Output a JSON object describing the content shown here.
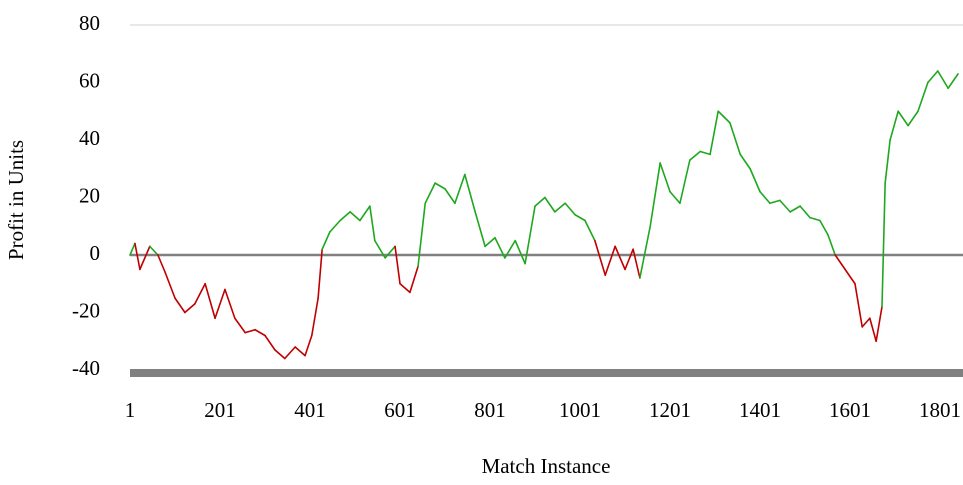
{
  "chart_data": {
    "type": "line",
    "x_label": "Match Instance",
    "y_label": "Profit in Units",
    "x": [
      1,
      12,
      23,
      45,
      63,
      79,
      101,
      123,
      145,
      168,
      190,
      212,
      234,
      257,
      279,
      301,
      323,
      345,
      368,
      390,
      405,
      419,
      428,
      445,
      468,
      490,
      512,
      534,
      545,
      568,
      590,
      601,
      623,
      641,
      657,
      679,
      701,
      723,
      745,
      768,
      790,
      812,
      834,
      857,
      879,
      901,
      923,
      945,
      968,
      990,
      1012,
      1034,
      1057,
      1079,
      1101,
      1119,
      1134,
      1157,
      1179,
      1201,
      1223,
      1245,
      1268,
      1290,
      1308,
      1334,
      1357,
      1379,
      1401,
      1423,
      1445,
      1468,
      1490,
      1512,
      1534,
      1552,
      1568,
      1590,
      1612,
      1628,
      1645,
      1659,
      1672,
      1679,
      1690,
      1708,
      1730,
      1752,
      1774,
      1796,
      1819,
      1841
    ],
    "values": [
      0,
      4,
      -5,
      3,
      0,
      -6,
      -15,
      -20,
      -17,
      -10,
      -22,
      -12,
      -22,
      -27,
      -26,
      -28,
      -33,
      -36,
      -32,
      -35,
      -28,
      -15,
      2,
      8,
      12,
      15,
      12,
      17,
      5,
      -1,
      3,
      -10,
      -13,
      -4,
      18,
      25,
      23,
      18,
      28,
      15,
      3,
      6,
      -1,
      5,
      -3,
      17,
      20,
      15,
      18,
      14,
      12,
      5,
      -7,
      3,
      -5,
      2,
      -8,
      10,
      32,
      22,
      18,
      33,
      36,
      35,
      50,
      46,
      35,
      30,
      22,
      18,
      19,
      15,
      17,
      13,
      12,
      7,
      0,
      -5,
      -10,
      -25,
      -22,
      -30,
      -18,
      25,
      40,
      50,
      45,
      50,
      60,
      64,
      58,
      63
    ],
    "positive_color": "#1fa81f",
    "negative_color": "#c00000",
    "xlim": [
      1,
      1852
    ],
    "xticks": [
      1,
      201,
      401,
      601,
      801,
      1001,
      1201,
      1401,
      1601,
      1801
    ],
    "ylim": [
      -40,
      80
    ],
    "yticks": [
      -40,
      -20,
      0,
      20,
      40,
      60,
      80
    ]
  }
}
